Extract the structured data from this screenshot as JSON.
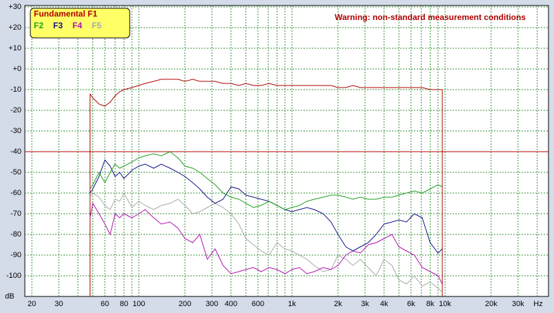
{
  "chart_data": {
    "type": "line",
    "annotation": "Warning: non-standard measurement conditions",
    "x_unit": "Hz",
    "y_unit": "dB",
    "log_x": true,
    "grid": true,
    "legend": "top-left",
    "threshold": -40,
    "threshold_color": "#b00000",
    "x_range": [
      48,
      9600
    ],
    "xlim": [
      18,
      47400
    ],
    "ylim": [
      -110,
      30
    ],
    "xticks": [
      20,
      30,
      60,
      80,
      100,
      200,
      300,
      400,
      600,
      {
        "value": 1000,
        "label": "1k"
      },
      {
        "value": 2000,
        "label": "2k"
      },
      {
        "value": 3000,
        "label": "3k"
      },
      {
        "value": 4000,
        "label": "4k"
      },
      {
        "value": 6000,
        "label": "6k"
      },
      {
        "value": 8000,
        "label": "8k"
      },
      {
        "value": 10000,
        "label": "10k"
      },
      {
        "value": 20000,
        "label": "20k"
      },
      {
        "value": 30000,
        "label": "30k"
      }
    ],
    "xminorticks": [
      40,
      50,
      70,
      90,
      500,
      700,
      800,
      900,
      5000,
      7000,
      9000,
      40000
    ],
    "yticks": [
      {
        "value": 30,
        "label": "+30"
      },
      {
        "value": 20,
        "label": "+20"
      },
      {
        "value": 10,
        "label": "+10"
      },
      {
        "value": 0,
        "label": "+0"
      },
      -10,
      -20,
      -30,
      -40,
      -50,
      -60,
      -70,
      -80,
      -90,
      -100
    ],
    "x": [
      48,
      50,
      55,
      60,
      65,
      70,
      75,
      80,
      90,
      100,
      110,
      125,
      140,
      160,
      180,
      200,
      225,
      250,
      280,
      315,
      355,
      400,
      450,
      500,
      560,
      630,
      710,
      800,
      900,
      1000,
      1120,
      1250,
      1400,
      1600,
      1800,
      2000,
      2250,
      2500,
      2800,
      3150,
      3550,
      4000,
      4500,
      5000,
      5600,
      6300,
      7100,
      8000,
      9000,
      9600
    ],
    "series": [
      {
        "name": "Fundamental F1",
        "color": "#b00000",
        "values": [
          -12,
          -14,
          -17,
          -18,
          -16,
          -13,
          -11,
          -10,
          -9,
          -8,
          -7,
          -6,
          -5,
          -5,
          -5,
          -6,
          -5,
          -6,
          -6,
          -6,
          -7,
          -7,
          -8,
          -7,
          -8,
          -8,
          -7,
          -8,
          -8,
          -8,
          -8,
          -8,
          -8,
          -8,
          -8,
          -9,
          -9,
          -8,
          -9,
          -9,
          -9,
          -9,
          -9,
          -9,
          -9,
          -9,
          -9,
          -10,
          -10,
          -10
        ]
      },
      {
        "name": "F2",
        "color": "#1e9e1e",
        "values": [
          -58,
          -56,
          -50,
          -55,
          -50,
          -46,
          -48,
          -47,
          -45,
          -43,
          -42,
          -41,
          -42,
          -40,
          -43,
          -47,
          -48,
          -50,
          -53,
          -56,
          -60,
          -62,
          -63,
          -65,
          -67,
          -66,
          -64,
          -66,
          -68,
          -67,
          -66,
          -64,
          -63,
          -62,
          -61,
          -61,
          -62,
          -63,
          -62,
          -63,
          -63,
          -62,
          -62,
          -61,
          -60,
          -59,
          -60,
          -58,
          -56,
          -57
        ]
      },
      {
        "name": "F3",
        "color": "#10108a",
        "values": [
          -60,
          -58,
          -52,
          -44,
          -47,
          -52,
          -50,
          -53,
          -49,
          -47,
          -46,
          -48,
          -46,
          -48,
          -50,
          -52,
          -55,
          -58,
          -62,
          -65,
          -63,
          -57,
          -58,
          -61,
          -62,
          -63,
          -64,
          -66,
          -68,
          -69,
          -68,
          -67,
          -68,
          -70,
          -74,
          -80,
          -86,
          -88,
          -86,
          -84,
          -80,
          -75,
          -74,
          -73,
          -74,
          -70,
          -72,
          -84,
          -89,
          -87
        ]
      },
      {
        "name": "F4",
        "color": "#b010b0",
        "values": [
          -72,
          -65,
          -70,
          -75,
          -80,
          -70,
          -72,
          -70,
          -72,
          -70,
          -68,
          -72,
          -75,
          -74,
          -77,
          -82,
          -84,
          -80,
          -92,
          -87,
          -95,
          -99,
          -98,
          -97,
          -96,
          -98,
          -96,
          -97,
          -99,
          -97,
          -96,
          -99,
          -98,
          -96,
          -97,
          -95,
          -90,
          -88,
          -89,
          -85,
          -84,
          -82,
          -80,
          -86,
          -88,
          -90,
          -96,
          -98,
          -100,
          -104
        ]
      },
      {
        "name": "F5",
        "color": "#a8a8a8",
        "values": [
          -62,
          -60,
          -62,
          -66,
          -68,
          -63,
          -64,
          -60,
          -67,
          -64,
          -66,
          -68,
          -66,
          -65,
          -63,
          -66,
          -70,
          -69,
          -67,
          -65,
          -67,
          -70,
          -75,
          -82,
          -85,
          -88,
          -90,
          -84,
          -87,
          -88,
          -90,
          -92,
          -95,
          -98,
          -97,
          -90,
          -92,
          -95,
          -92,
          -96,
          -100,
          -92,
          -95,
          -102,
          -104,
          -100,
          -105,
          -103,
          -106,
          -108
        ]
      }
    ]
  }
}
